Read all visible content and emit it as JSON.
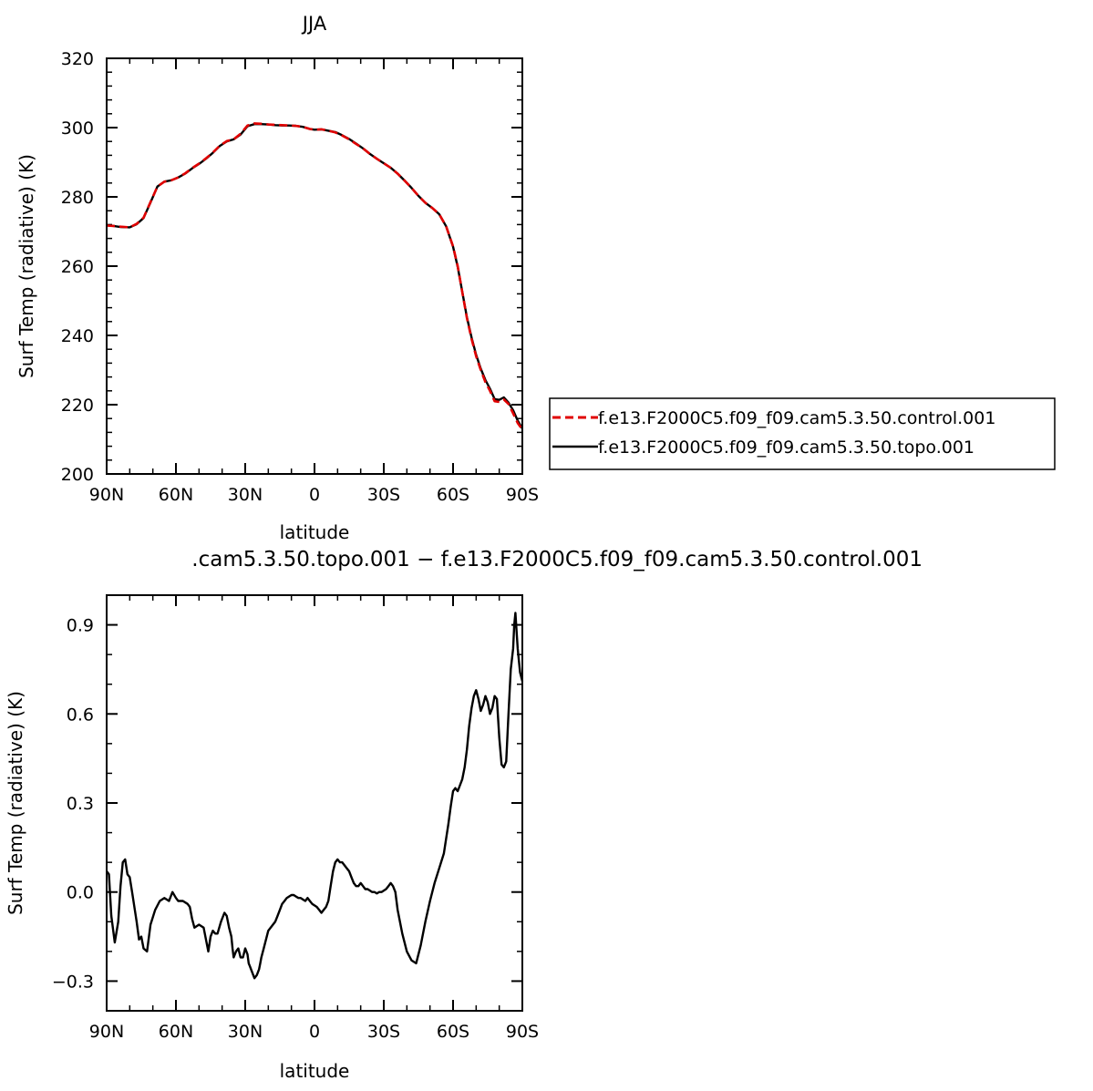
{
  "chart_data": [
    {
      "type": "line",
      "title": "JJA",
      "xlabel": "latitude",
      "ylabel": "Surf Temp (radiative) (K)",
      "xlim": [
        90,
        -90
      ],
      "ylim": [
        200,
        320
      ],
      "xticks": [
        90,
        60,
        30,
        0,
        -30,
        -60,
        -90
      ],
      "xtick_labels": [
        "90N",
        "60N",
        "30N",
        "0",
        "30S",
        "60S",
        "90S"
      ],
      "yticks": [
        200,
        220,
        240,
        260,
        280,
        300,
        320
      ],
      "ytick_labels": [
        "200",
        "220",
        "240",
        "260",
        "280",
        "300",
        "320"
      ],
      "legend_position": "right",
      "series": [
        {
          "name": "f.e13.F2000C5.f09_f09.cam5.3.50.control.001",
          "color": "#e00000",
          "dash": "dashed",
          "x": [
            90,
            87,
            84,
            80,
            77,
            74,
            71,
            68,
            65,
            62,
            59,
            56,
            53,
            50,
            47,
            44,
            41,
            38,
            35,
            32,
            29,
            26,
            23,
            20,
            17,
            14,
            11,
            8,
            5,
            2,
            0,
            -3,
            -6,
            -9,
            -12,
            -15,
            -18,
            -21,
            -24,
            -27,
            -30,
            -33,
            -36,
            -39,
            -42,
            -45,
            -48,
            -51,
            -54,
            -57,
            -60,
            -62,
            -64,
            -66,
            -68,
            -70,
            -72,
            -74,
            -76,
            -78,
            -80,
            -82,
            -84,
            -86,
            -88,
            -90
          ],
          "y": [
            271.7,
            271.6,
            271.4,
            271.2,
            272.2,
            274.0,
            278.5,
            283.0,
            284.4,
            284.8,
            285.6,
            286.8,
            288.3,
            289.6,
            291.1,
            292.8,
            294.8,
            296.1,
            296.6,
            298.2,
            300.6,
            301.2,
            301.1,
            300.9,
            300.8,
            300.7,
            300.6,
            300.5,
            300.2,
            299.6,
            299.4,
            299.5,
            299.1,
            298.6,
            297.7,
            296.6,
            295.3,
            294.0,
            292.4,
            291.0,
            289.7,
            288.4,
            286.7,
            284.7,
            282.6,
            280.3,
            278.3,
            276.8,
            275.0,
            271.5,
            265.7,
            260.0,
            252.5,
            245.0,
            239.0,
            234.0,
            230.0,
            226.5,
            224.0,
            221.0,
            220.8,
            221.5,
            220.2,
            217.5,
            214.7,
            212.8
          ]
        },
        {
          "name": "f.e13.F2000C5.f09_f09.cam5.3.50.topo.001",
          "color": "#000000",
          "dash": "solid",
          "x": [
            90,
            87,
            84,
            80,
            77,
            74,
            71,
            68,
            65,
            62,
            59,
            56,
            53,
            50,
            47,
            44,
            41,
            38,
            35,
            32,
            29,
            26,
            23,
            20,
            17,
            14,
            11,
            8,
            5,
            2,
            0,
            -3,
            -6,
            -9,
            -12,
            -15,
            -18,
            -21,
            -24,
            -27,
            -30,
            -33,
            -36,
            -39,
            -42,
            -45,
            -48,
            -51,
            -54,
            -57,
            -60,
            -62,
            -64,
            -66,
            -68,
            -70,
            -72,
            -74,
            -76,
            -78,
            -80,
            -82,
            -84,
            -86,
            -88,
            -90
          ],
          "y": [
            271.8,
            271.6,
            271.3,
            271.2,
            272.1,
            273.9,
            278.4,
            283.0,
            284.4,
            284.8,
            285.6,
            286.7,
            288.2,
            289.5,
            291.0,
            292.7,
            294.7,
            296.0,
            296.6,
            298.0,
            300.4,
            301.0,
            301.0,
            300.9,
            300.7,
            300.6,
            300.6,
            300.5,
            300.2,
            299.6,
            299.4,
            299.5,
            299.1,
            298.7,
            297.8,
            296.7,
            295.4,
            294.0,
            292.4,
            291.0,
            289.7,
            288.4,
            286.7,
            284.7,
            282.6,
            280.3,
            278.3,
            276.8,
            275.0,
            271.5,
            265.6,
            259.8,
            252.6,
            245.2,
            239.4,
            234.4,
            230.4,
            227.1,
            224.6,
            221.6,
            221.4,
            222.1,
            220.6,
            218.4,
            215.4,
            213.1
          ]
        }
      ]
    },
    {
      "type": "line",
      "title": ".cam5.3.50.topo.001 − f.e13.F2000C5.f09_f09.cam5.3.50.control.001",
      "xlabel": "latitude",
      "ylabel": "Surf Temp (radiative) (K)",
      "xlim": [
        90,
        -90
      ],
      "ylim": [
        -0.4,
        1.0
      ],
      "xticks": [
        90,
        60,
        30,
        0,
        -30,
        -60,
        -90
      ],
      "xtick_labels": [
        "90N",
        "60N",
        "30N",
        "0",
        "30S",
        "60S",
        "90S"
      ],
      "yticks": [
        -0.3,
        0.0,
        0.3,
        0.6,
        0.9
      ],
      "ytick_labels": [
        "−0.3",
        "0.0",
        "0.3",
        "0.6",
        "0.9"
      ],
      "series": [
        {
          "color": "#000000",
          "dash": "solid",
          "x": [
            90,
            89,
            88,
            86.5,
            85,
            84,
            83,
            82,
            81,
            80,
            79,
            78,
            77,
            76,
            75,
            74,
            72.5,
            71,
            69,
            67,
            65,
            63,
            61.5,
            60,
            59,
            57,
            55,
            54,
            53,
            52,
            50,
            48,
            46,
            45,
            44,
            43,
            42,
            40.5,
            39,
            38,
            37,
            36,
            35.5,
            35,
            34,
            33,
            32,
            31,
            30,
            29,
            28.5,
            28,
            27,
            26,
            25,
            24,
            23.5,
            23,
            22,
            21,
            20,
            19,
            18,
            17,
            16,
            15,
            14,
            13,
            12,
            11,
            10,
            9,
            8,
            7,
            6,
            5,
            4,
            3,
            2,
            1,
            0,
            -1,
            -2,
            -3,
            -4,
            -5,
            -6,
            -7,
            -8,
            -9,
            -10,
            -11,
            -12,
            -13,
            -14,
            -15,
            -16,
            -17,
            -18,
            -19,
            -20,
            -21,
            -22,
            -23,
            -24,
            -25,
            -26,
            -27,
            -28,
            -29,
            -30,
            -31,
            -32,
            -33,
            -34,
            -35,
            -36,
            -38,
            -40,
            -42,
            -44,
            -46,
            -48,
            -50,
            -52,
            -54,
            -56,
            -57,
            -58,
            -59,
            -60,
            -61,
            -62,
            -63,
            -64,
            -65,
            -66,
            -67,
            -68,
            -69,
            -70,
            -71,
            -72,
            -73,
            -74,
            -75,
            -76,
            -77,
            -78,
            -79,
            -80,
            -81,
            -82,
            -83,
            -84,
            -85,
            -86,
            -86.5,
            -87,
            -88,
            -89,
            -90
          ],
          "y": [
            0.07,
            0.06,
            -0.08,
            -0.17,
            -0.1,
            0.02,
            0.1,
            0.11,
            0.06,
            0.05,
            0.0,
            -0.05,
            -0.1,
            -0.16,
            -0.15,
            -0.19,
            -0.2,
            -0.11,
            -0.06,
            -0.03,
            -0.02,
            -0.03,
            0.0,
            -0.02,
            -0.03,
            -0.03,
            -0.04,
            -0.05,
            -0.09,
            -0.12,
            -0.11,
            -0.12,
            -0.2,
            -0.15,
            -0.13,
            -0.14,
            -0.14,
            -0.1,
            -0.07,
            -0.08,
            -0.12,
            -0.15,
            -0.19,
            -0.22,
            -0.2,
            -0.19,
            -0.22,
            -0.22,
            -0.19,
            -0.21,
            -0.24,
            -0.25,
            -0.27,
            -0.29,
            -0.28,
            -0.26,
            -0.24,
            -0.22,
            -0.19,
            -0.16,
            -0.13,
            -0.12,
            -0.11,
            -0.1,
            -0.08,
            -0.06,
            -0.04,
            -0.03,
            -0.02,
            -0.015,
            -0.01,
            -0.01,
            -0.015,
            -0.02,
            -0.02,
            -0.025,
            -0.03,
            -0.02,
            -0.03,
            -0.04,
            -0.045,
            -0.05,
            -0.06,
            -0.07,
            -0.06,
            -0.05,
            -0.03,
            0.02,
            0.07,
            0.1,
            0.11,
            0.1,
            0.1,
            0.09,
            0.08,
            0.07,
            0.05,
            0.03,
            0.02,
            0.02,
            0.03,
            0.02,
            0.01,
            0.01,
            0.005,
            0.0,
            0.0,
            -0.005,
            0.0,
            0.0,
            0.005,
            0.01,
            0.02,
            0.03,
            0.02,
            0.0,
            -0.06,
            -0.14,
            -0.2,
            -0.23,
            -0.24,
            -0.18,
            -0.1,
            -0.03,
            0.03,
            0.08,
            0.13,
            0.18,
            0.23,
            0.29,
            0.34,
            0.35,
            0.34,
            0.36,
            0.38,
            0.42,
            0.48,
            0.56,
            0.62,
            0.66,
            0.68,
            0.65,
            0.61,
            0.63,
            0.66,
            0.64,
            0.6,
            0.62,
            0.66,
            0.65,
            0.52,
            0.43,
            0.42,
            0.44,
            0.6,
            0.75,
            0.82,
            0.9,
            0.94,
            0.82,
            0.74,
            0.71
          ]
        }
      ]
    }
  ]
}
